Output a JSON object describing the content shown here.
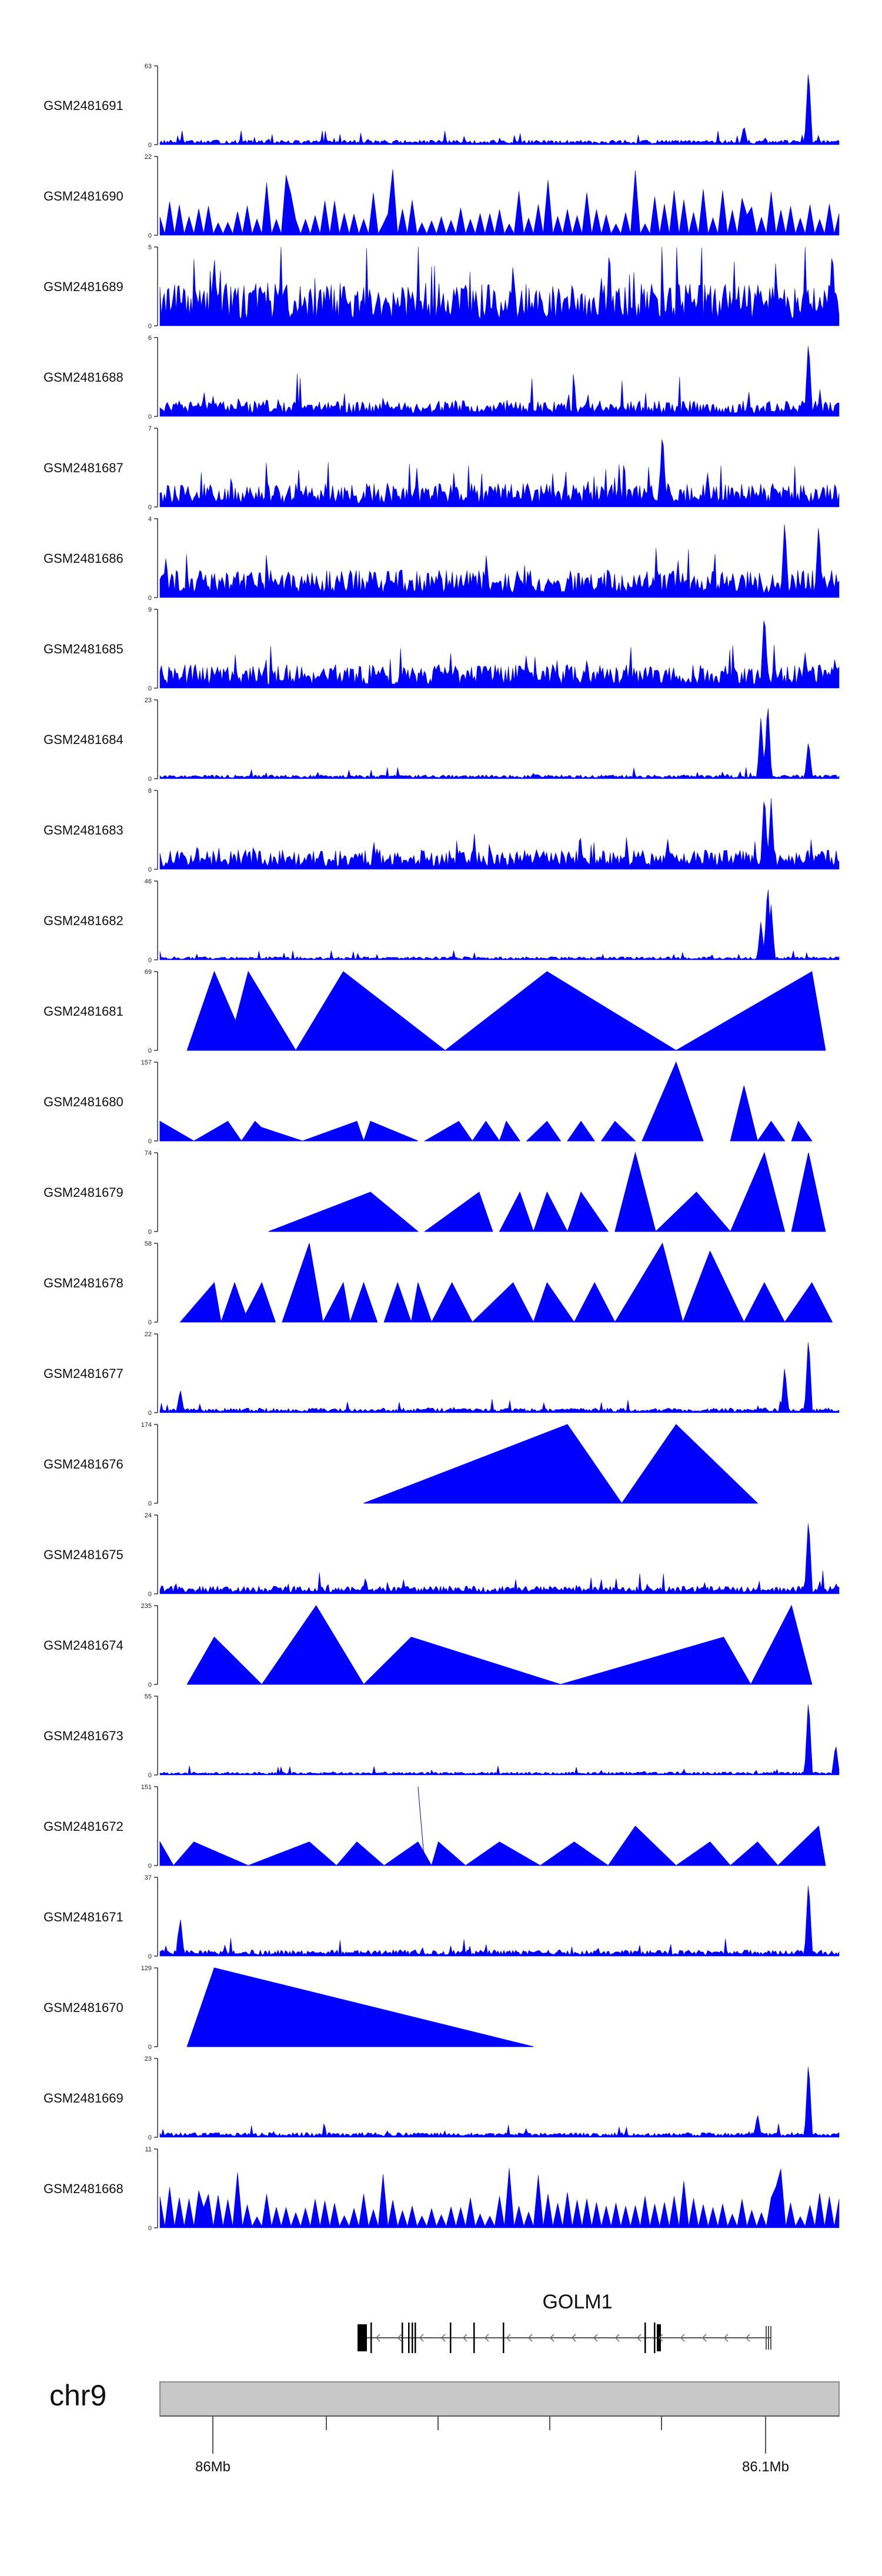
{
  "chart_data": {
    "type": "area",
    "color": "#0000ff",
    "gene": "GOLM1",
    "chromosome": "chr9",
    "x_ticks": [
      "86Mb",
      "86.1Mb"
    ],
    "tracks": [
      {
        "name": "GSM2481691",
        "ymax": 63,
        "pattern": "noise",
        "base": 0.06,
        "peaks": [
          [
            0.86,
            0.25
          ],
          [
            0.955,
            1.0
          ]
        ]
      },
      {
        "name": "GSM2481690",
        "ymax": 22,
        "pattern": "spikes",
        "base": 0.45,
        "peaks": [
          [
            0.19,
            1.0
          ],
          [
            0.34,
            0.95
          ],
          [
            0.86,
            0.9
          ]
        ]
      },
      {
        "name": "GSM2481689",
        "ymax": 5,
        "pattern": "dense",
        "base": 0.55,
        "peaks": [
          [
            0.08,
            0.9
          ],
          [
            0.99,
            1.0
          ]
        ]
      },
      {
        "name": "GSM2481688",
        "ymax": 6,
        "pattern": "noise",
        "base": 0.2,
        "peaks": [
          [
            0.955,
            1.0
          ]
        ]
      },
      {
        "name": "GSM2481687",
        "ymax": 7,
        "pattern": "dense",
        "base": 0.3,
        "peaks": [
          [
            0.74,
            1.0
          ]
        ]
      },
      {
        "name": "GSM2481686",
        "ymax": 4,
        "pattern": "dense",
        "base": 0.35,
        "peaks": [
          [
            0.92,
            1.0
          ],
          [
            0.97,
            0.95
          ]
        ]
      },
      {
        "name": "GSM2481685",
        "ymax": 9,
        "pattern": "dense",
        "base": 0.3,
        "peaks": [
          [
            0.89,
            1.0
          ],
          [
            0.95,
            0.45
          ]
        ]
      },
      {
        "name": "GSM2481684",
        "ymax": 23,
        "pattern": "noise",
        "base": 0.05,
        "peaks": [
          [
            0.885,
            0.8
          ],
          [
            0.895,
            1.0
          ],
          [
            0.955,
            0.5
          ]
        ]
      },
      {
        "name": "GSM2481683",
        "ymax": 8,
        "pattern": "dense",
        "base": 0.25,
        "peaks": [
          [
            0.89,
            1.0
          ],
          [
            0.9,
            0.9
          ]
        ]
      },
      {
        "name": "GSM2481682",
        "ymax": 46,
        "pattern": "noise",
        "base": 0.04,
        "peaks": [
          [
            0.885,
            0.5
          ],
          [
            0.895,
            1.0
          ],
          [
            0.9,
            0.7
          ]
        ]
      },
      {
        "name": "GSM2481681",
        "ymax": 69,
        "pattern": "segments",
        "segments": [
          [
            0.04,
            0.08,
            0.13,
            1.0
          ],
          [
            0.1,
            0.13,
            0.2,
            1.0
          ],
          [
            0.2,
            0.27,
            0.42,
            1.0
          ],
          [
            0.42,
            0.57,
            0.76,
            1.0
          ],
          [
            0.76,
            0.96,
            0.98,
            1.0
          ]
        ]
      },
      {
        "name": "GSM2481680",
        "ymax": 157,
        "pattern": "segments",
        "segments": [
          [
            0.0,
            0.0,
            0.05,
            0.25
          ],
          [
            0.05,
            0.1,
            0.12,
            0.25
          ],
          [
            0.12,
            0.14,
            0.17,
            0.25
          ],
          [
            0.13,
            0.14,
            0.21,
            0.2
          ],
          [
            0.21,
            0.29,
            0.3,
            0.25
          ],
          [
            0.3,
            0.31,
            0.38,
            0.25
          ],
          [
            0.39,
            0.44,
            0.46,
            0.25
          ],
          [
            0.46,
            0.48,
            0.5,
            0.25
          ],
          [
            0.5,
            0.51,
            0.53,
            0.25
          ],
          [
            0.54,
            0.57,
            0.59,
            0.25
          ],
          [
            0.6,
            0.62,
            0.64,
            0.25
          ],
          [
            0.65,
            0.67,
            0.7,
            0.25
          ],
          [
            0.71,
            0.76,
            0.8,
            1.0
          ],
          [
            0.84,
            0.86,
            0.88,
            0.7
          ],
          [
            0.88,
            0.9,
            0.92,
            0.25
          ],
          [
            0.93,
            0.94,
            0.96,
            0.25
          ]
        ]
      },
      {
        "name": "GSM2481679",
        "ymax": 74,
        "pattern": "segments",
        "segments": [
          [
            0.16,
            0.31,
            0.38,
            0.5
          ],
          [
            0.39,
            0.47,
            0.49,
            0.5
          ],
          [
            0.5,
            0.53,
            0.55,
            0.5
          ],
          [
            0.55,
            0.57,
            0.6,
            0.5
          ],
          [
            0.6,
            0.62,
            0.66,
            0.5
          ],
          [
            0.67,
            0.7,
            0.73,
            1.0
          ],
          [
            0.73,
            0.79,
            0.84,
            0.5
          ],
          [
            0.84,
            0.89,
            0.92,
            1.0
          ],
          [
            0.93,
            0.955,
            0.98,
            1.0
          ]
        ]
      },
      {
        "name": "GSM2481678",
        "ymax": 58,
        "pattern": "segments",
        "segments": [
          [
            0.03,
            0.08,
            0.09,
            0.5
          ],
          [
            0.09,
            0.11,
            0.13,
            0.5
          ],
          [
            0.12,
            0.15,
            0.17,
            0.5
          ],
          [
            0.18,
            0.22,
            0.24,
            1.0
          ],
          [
            0.24,
            0.27,
            0.28,
            0.5
          ],
          [
            0.28,
            0.3,
            0.32,
            0.5
          ],
          [
            0.33,
            0.35,
            0.37,
            0.5
          ],
          [
            0.37,
            0.38,
            0.4,
            0.5
          ],
          [
            0.4,
            0.43,
            0.46,
            0.5
          ],
          [
            0.46,
            0.52,
            0.55,
            0.5
          ],
          [
            0.55,
            0.57,
            0.61,
            0.5
          ],
          [
            0.61,
            0.64,
            0.67,
            0.5
          ],
          [
            0.67,
            0.74,
            0.77,
            1.0
          ],
          [
            0.77,
            0.81,
            0.86,
            0.9
          ],
          [
            0.86,
            0.89,
            0.92,
            0.5
          ],
          [
            0.92,
            0.96,
            0.99,
            0.5
          ]
        ]
      },
      {
        "name": "GSM2481677",
        "ymax": 22,
        "pattern": "noise",
        "base": 0.06,
        "peaks": [
          [
            0.03,
            0.3
          ],
          [
            0.92,
            0.6
          ],
          [
            0.955,
            1.0
          ]
        ]
      },
      {
        "name": "GSM2481676",
        "ymax": 174,
        "pattern": "segments",
        "segments": [
          [
            0.3,
            0.6,
            0.68,
            1.0
          ],
          [
            0.68,
            0.76,
            0.88,
            1.0
          ]
        ]
      },
      {
        "name": "GSM2481675",
        "ymax": 24,
        "pattern": "noise",
        "base": 0.1,
        "peaks": [
          [
            0.955,
            1.0
          ]
        ]
      },
      {
        "name": "GSM2481674",
        "ymax": 235,
        "pattern": "segments",
        "segments": [
          [
            0.04,
            0.08,
            0.15,
            0.6
          ],
          [
            0.15,
            0.23,
            0.3,
            1.0
          ],
          [
            0.3,
            0.37,
            0.59,
            0.6
          ],
          [
            0.59,
            0.83,
            0.87,
            0.6
          ],
          [
            0.87,
            0.93,
            0.96,
            1.0
          ]
        ]
      },
      {
        "name": "GSM2481673",
        "ymax": 55,
        "pattern": "noise",
        "base": 0.04,
        "peaks": [
          [
            0.955,
            1.0
          ],
          [
            0.995,
            0.4
          ]
        ]
      },
      {
        "name": "GSM2481672",
        "ymax": 151,
        "pattern": "segments",
        "segments": [
          [
            0.0,
            0.0,
            0.02,
            0.3
          ],
          [
            0.02,
            0.05,
            0.13,
            0.3
          ],
          [
            0.13,
            0.22,
            0.26,
            0.3
          ],
          [
            0.26,
            0.29,
            0.33,
            0.3
          ],
          [
            0.33,
            0.38,
            0.4,
            0.3
          ],
          [
            0.39,
            0.38,
            0.39,
            1.0
          ],
          [
            0.4,
            0.41,
            0.45,
            0.3
          ],
          [
            0.45,
            0.5,
            0.56,
            0.3
          ],
          [
            0.56,
            0.61,
            0.66,
            0.3
          ],
          [
            0.66,
            0.7,
            0.76,
            0.5
          ],
          [
            0.76,
            0.81,
            0.84,
            0.3
          ],
          [
            0.84,
            0.88,
            0.91,
            0.3
          ],
          [
            0.91,
            0.97,
            0.98,
            0.5
          ]
        ]
      },
      {
        "name": "GSM2481671",
        "ymax": 37,
        "pattern": "noise",
        "base": 0.08,
        "peaks": [
          [
            0.03,
            0.5
          ],
          [
            0.955,
            1.0
          ]
        ]
      },
      {
        "name": "GSM2481670",
        "ymax": 129,
        "pattern": "segments",
        "segments": [
          [
            0.04,
            0.08,
            0.55,
            1.0
          ]
        ]
      },
      {
        "name": "GSM2481669",
        "ymax": 23,
        "pattern": "noise",
        "base": 0.06,
        "peaks": [
          [
            0.88,
            0.3
          ],
          [
            0.955,
            1.0
          ]
        ]
      },
      {
        "name": "GSM2481668",
        "ymax": 11,
        "pattern": "spikes",
        "base": 0.45,
        "peaks": [
          [
            0.06,
            0.9
          ],
          [
            0.91,
            1.0
          ]
        ]
      }
    ]
  }
}
